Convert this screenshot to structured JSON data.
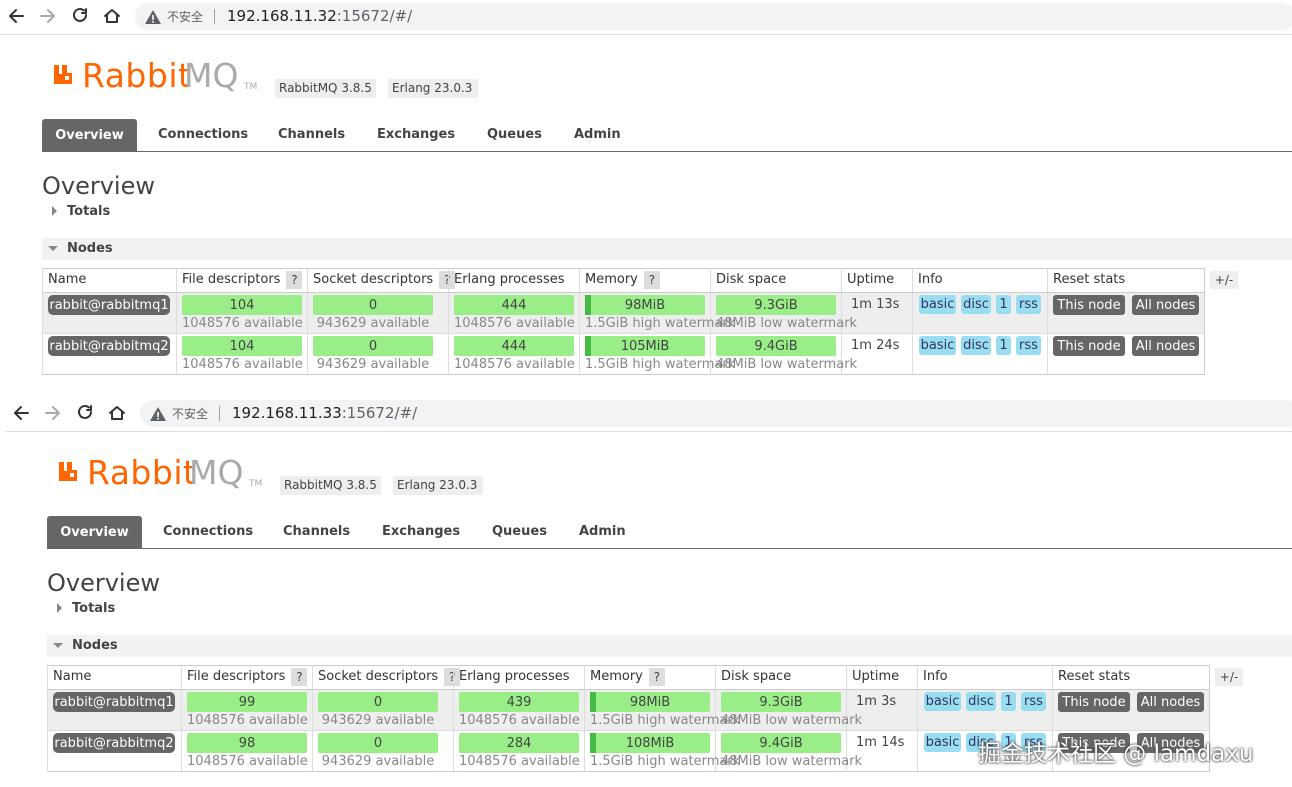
{
  "panels": [
    {
      "browser": {
        "insecure": "不安全",
        "url_host": "192.168.11.32",
        "url_rest": ":15672/#/"
      },
      "header": {
        "logo_a": "Rabbit",
        "logo_b": "MQ",
        "tm": "TM",
        "version": "RabbitMQ 3.8.5",
        "erlang": "Erlang 23.0.3"
      },
      "tabs": [
        "Overview",
        "Connections",
        "Channels",
        "Exchanges",
        "Queues",
        "Admin"
      ],
      "title": "Overview",
      "totals": "Totals",
      "nodes_heading": "Nodes",
      "table": {
        "columns": [
          {
            "label": "Name"
          },
          {
            "label": "File descriptors",
            "help": "?"
          },
          {
            "label": "Socket descriptors",
            "help": "?"
          },
          {
            "label": "Erlang processes"
          },
          {
            "label": "Memory",
            "help": "?"
          },
          {
            "label": "Disk space"
          },
          {
            "label": "Uptime"
          },
          {
            "label": "Info"
          },
          {
            "label": "Reset stats"
          }
        ],
        "toggle": "+/-",
        "rows": [
          {
            "name": "rabbit@rabbitmq1",
            "fd": "104",
            "fd_avail": "1048576 available",
            "sockets": "0",
            "sockets_avail": "943629 available",
            "procs": "444",
            "procs_avail": "1048576 available",
            "memory": "98MiB",
            "memory_wm": "1.5GiB high watermark",
            "disk": "9.3GiB",
            "disk_wm": "48MiB low watermark",
            "uptime": "1m 13s",
            "info": [
              "basic",
              "disc",
              "1",
              "rss"
            ],
            "reset": [
              "This node",
              "All nodes"
            ]
          },
          {
            "name": "rabbit@rabbitmq2",
            "fd": "104",
            "fd_avail": "1048576 available",
            "sockets": "0",
            "sockets_avail": "943629 available",
            "procs": "444",
            "procs_avail": "1048576 available",
            "memory": "105MiB",
            "memory_wm": "1.5GiB high watermark",
            "disk": "9.4GiB",
            "disk_wm": "48MiB low watermark",
            "uptime": "1m 24s",
            "info": [
              "basic",
              "disc",
              "1",
              "rss"
            ],
            "reset": [
              "This node",
              "All nodes"
            ]
          }
        ]
      }
    },
    {
      "browser": {
        "insecure": "不安全",
        "url_host": "192.168.11.33",
        "url_rest": ":15672/#/"
      },
      "header": {
        "logo_a": "Rabbit",
        "logo_b": "MQ",
        "tm": "TM",
        "version": "RabbitMQ 3.8.5",
        "erlang": "Erlang 23.0.3"
      },
      "tabs": [
        "Overview",
        "Connections",
        "Channels",
        "Exchanges",
        "Queues",
        "Admin"
      ],
      "title": "Overview",
      "totals": "Totals",
      "nodes_heading": "Nodes",
      "table": {
        "columns": [
          {
            "label": "Name"
          },
          {
            "label": "File descriptors",
            "help": "?"
          },
          {
            "label": "Socket descriptors",
            "help": "?"
          },
          {
            "label": "Erlang processes"
          },
          {
            "label": "Memory",
            "help": "?"
          },
          {
            "label": "Disk space"
          },
          {
            "label": "Uptime"
          },
          {
            "label": "Info"
          },
          {
            "label": "Reset stats"
          }
        ],
        "toggle": "+/-",
        "rows": [
          {
            "name": "rabbit@rabbitmq1",
            "fd": "99",
            "fd_avail": "1048576 available",
            "sockets": "0",
            "sockets_avail": "943629 available",
            "procs": "439",
            "procs_avail": "1048576 available",
            "memory": "98MiB",
            "memory_wm": "1.5GiB high watermark",
            "disk": "9.3GiB",
            "disk_wm": "48MiB low watermark",
            "uptime": "1m 3s",
            "info": [
              "basic",
              "disc",
              "1",
              "rss"
            ],
            "reset": [
              "This node",
              "All nodes"
            ]
          },
          {
            "name": "rabbit@rabbitmq2",
            "fd": "98",
            "fd_avail": "1048576 available",
            "sockets": "0",
            "sockets_avail": "943629 available",
            "procs": "284",
            "procs_avail": "1048576 available",
            "memory": "108MiB",
            "memory_wm": "1.5GiB high watermark",
            "disk": "9.4GiB",
            "disk_wm": "48MiB low watermark",
            "uptime": "1m 14s",
            "info": [
              "basic",
              "disc",
              "1",
              "rss"
            ],
            "reset": [
              "This node",
              "All nodes"
            ]
          }
        ]
      }
    }
  ],
  "watermark": "掘金技术社区 @ lamdaxu"
}
